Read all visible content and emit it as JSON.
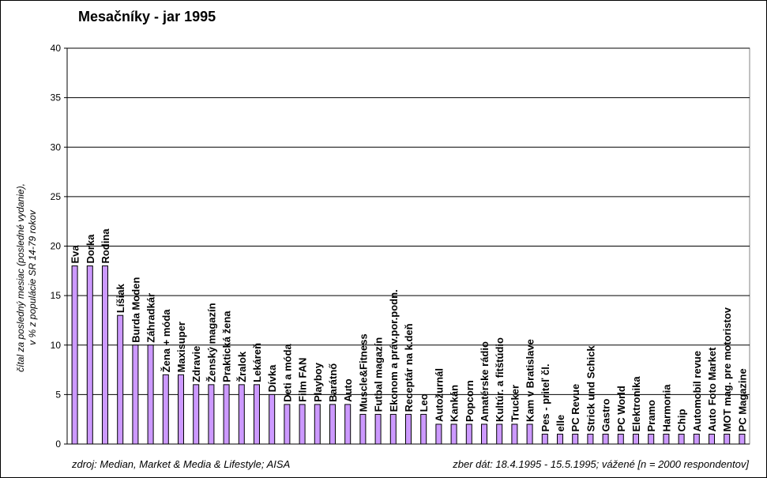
{
  "chart_data": {
    "type": "bar",
    "title": "Mesačníky - jar 1995",
    "ylabel_line1": "čítal za posledný mesiac (posledné vydanie),",
    "ylabel_line2": "v % z populácie SR 14-79 rokov",
    "ylim": [
      0,
      40
    ],
    "ytick_step": 5,
    "grid": true,
    "categories": [
      "Eva",
      "Dorka",
      "Rodina",
      "Líšiak",
      "Burda Moden",
      "Záhradkár",
      "Žena + móda",
      "Maxisuper",
      "Zdravie",
      "Ženský magazín",
      "Praktická žena",
      "Žralok",
      "Lekáreň",
      "Dívka",
      "Deti a móda",
      "Film FAN",
      "Playboy",
      "Barátnő",
      "Auto",
      "Muscle&Fitness",
      "Futbal magazín",
      "Ekonom a práv.por.podn.",
      "Receptár na k.deň",
      "Leo",
      "Autožurnál",
      "Kankán",
      "Popcorn",
      "Amatérske rádio",
      "Kultúr. a fitštúdio",
      "Trucker",
      "Kam v Bratislave",
      "Pes - priteľ čl.",
      "elle",
      "PC Revue",
      "Strick und Schick",
      "Gastro",
      "PC World",
      "Elektronika",
      "Pramo",
      "Harmonia",
      "Chip",
      "Automobil revue",
      "Auto Foto Market",
      "MOT mag. pre motoristov",
      "PC Magazine"
    ],
    "values": [
      18,
      18,
      18,
      13,
      10,
      10,
      7,
      7,
      6,
      6,
      6,
      6,
      6,
      5,
      4,
      4,
      4,
      4,
      4,
      3,
      3,
      3,
      3,
      3,
      2,
      2,
      2,
      2,
      2,
      2,
      2,
      1,
      1,
      1,
      1,
      1,
      1,
      1,
      1,
      1,
      1,
      1,
      1,
      1,
      1
    ],
    "bar_color": "#cc99ff"
  },
  "footer": {
    "source": "zdroj: Median, Market & Media & Lifestyle; AISA",
    "note": "zber dát: 18.4.1995 - 15.5.1995; vážené [n = 2000 respondentov]"
  }
}
